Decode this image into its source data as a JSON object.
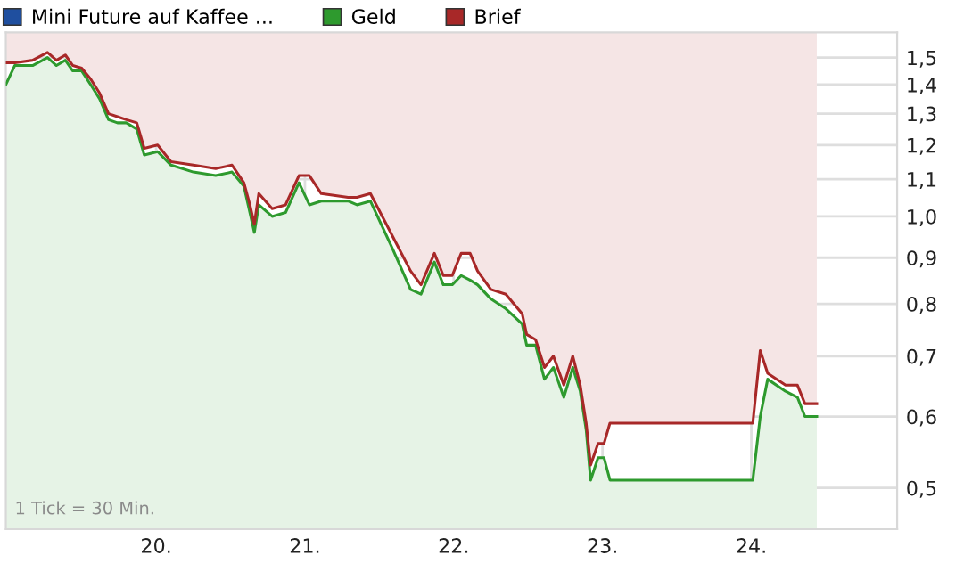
{
  "chart_data": {
    "type": "line",
    "x": [
      18.99,
      19.05,
      19.17,
      19.27,
      19.33,
      19.39,
      19.44,
      19.5,
      19.56,
      19.62,
      19.68,
      19.74,
      19.8,
      19.87,
      19.92,
      20.01,
      20.1,
      20.25,
      20.4,
      20.51,
      20.59,
      20.63,
      20.66,
      20.69,
      20.78,
      20.87,
      20.96,
      21.03,
      21.11,
      21.29,
      21.35,
      21.44,
      21.59,
      21.71,
      21.78,
      21.87,
      21.93,
      21.99,
      22.05,
      22.11,
      22.16,
      22.25,
      22.35,
      22.46,
      22.49,
      22.55,
      22.61,
      22.67,
      22.74,
      22.8,
      22.85,
      22.89,
      22.92,
      22.97,
      23.01,
      23.05,
      24.01,
      24.06,
      24.11,
      24.23,
      24.31,
      24.36,
      24.44
    ],
    "series": [
      {
        "name": "Mini Future auf Kaffee ...",
        "color": "#1f4f9f",
        "values": [
          null,
          null,
          null,
          null,
          null,
          null,
          null,
          null,
          null,
          null,
          null,
          null,
          null,
          null,
          null,
          null,
          null,
          null,
          null,
          null,
          null,
          null,
          null,
          null,
          null,
          null,
          null,
          null,
          null,
          null,
          null,
          null,
          null,
          null,
          null,
          null,
          null,
          null,
          null,
          null,
          null,
          null,
          null,
          null,
          null,
          null,
          null,
          null,
          null,
          null,
          null,
          null,
          null,
          null,
          null,
          null,
          null,
          null,
          null,
          null,
          null,
          null,
          null
        ]
      },
      {
        "name": "Geld",
        "color": "#2e9a2e",
        "type": "area",
        "values": [
          1.4,
          1.47,
          1.47,
          1.5,
          1.47,
          1.49,
          1.45,
          1.45,
          1.4,
          1.35,
          1.28,
          1.27,
          1.27,
          1.25,
          1.17,
          1.18,
          1.14,
          1.12,
          1.11,
          1.12,
          1.08,
          1.01,
          0.96,
          1.03,
          1.0,
          1.01,
          1.09,
          1.03,
          1.04,
          1.04,
          1.03,
          1.04,
          0.92,
          0.83,
          0.82,
          0.89,
          0.84,
          0.84,
          0.86,
          0.85,
          0.84,
          0.81,
          0.79,
          0.76,
          0.72,
          0.72,
          0.66,
          0.68,
          0.63,
          0.68,
          0.64,
          0.58,
          0.51,
          0.54,
          0.54,
          0.51,
          0.51,
          0.6,
          0.66,
          0.64,
          0.63,
          0.6,
          0.6
        ]
      },
      {
        "name": "Brief",
        "color": "#a82828",
        "type": "line",
        "values": [
          1.48,
          1.48,
          1.49,
          1.52,
          1.49,
          1.51,
          1.47,
          1.46,
          1.42,
          1.37,
          1.3,
          1.29,
          1.28,
          1.27,
          1.19,
          1.2,
          1.15,
          1.14,
          1.13,
          1.14,
          1.09,
          1.03,
          0.98,
          1.06,
          1.02,
          1.03,
          1.11,
          1.11,
          1.06,
          1.05,
          1.05,
          1.06,
          0.95,
          0.87,
          0.84,
          0.91,
          0.86,
          0.86,
          0.91,
          0.91,
          0.87,
          0.83,
          0.82,
          0.78,
          0.74,
          0.73,
          0.68,
          0.7,
          0.65,
          0.7,
          0.65,
          0.59,
          0.53,
          0.56,
          0.56,
          0.59,
          0.59,
          0.71,
          0.67,
          0.65,
          0.65,
          0.62,
          0.62
        ],
        "lower": [
          1.48,
          1.48,
          1.49,
          1.52,
          1.49,
          1.51,
          1.47,
          1.46,
          1.42,
          1.37,
          1.3,
          1.29,
          1.28,
          1.27,
          1.19,
          1.2,
          1.15,
          1.14,
          1.13,
          1.14,
          1.09,
          1.03,
          0.98,
          1.06,
          1.02,
          1.03,
          1.11,
          1.11,
          1.06,
          1.05,
          1.05,
          1.06,
          0.95,
          0.87,
          0.84,
          0.91,
          0.86,
          0.86,
          0.91,
          0.91,
          0.87,
          0.83,
          0.82,
          0.78,
          0.74,
          0.73,
          0.68,
          0.7,
          0.65,
          0.7,
          0.65,
          0.59,
          0.53,
          0.56,
          0.56,
          0.59,
          0.59,
          0.71,
          0.67,
          0.65,
          0.65,
          0.62,
          0.62
        ],
        "upper": [
          1.6,
          1.6,
          1.6,
          1.6,
          1.6,
          1.6,
          1.6,
          1.6,
          1.6,
          1.6,
          1.6,
          1.6,
          1.6,
          1.6,
          1.6,
          1.6,
          1.6,
          1.6,
          1.6,
          1.6,
          1.6,
          1.6,
          1.6,
          1.6,
          1.6,
          1.6,
          1.6,
          1.6,
          1.6,
          1.6,
          1.6,
          1.6,
          1.6,
          1.6,
          1.6,
          1.6,
          1.6,
          1.6,
          1.6,
          1.6,
          1.6,
          1.6,
          1.6,
          1.6,
          1.6,
          1.6,
          1.6,
          1.6,
          1.6,
          1.6,
          1.6,
          1.6,
          1.6,
          1.6,
          1.6,
          1.6,
          1.6,
          1.6,
          1.6,
          1.6,
          1.6,
          1.6,
          1.6
        ]
      }
    ],
    "log": "y",
    "xlim": [
      18.99,
      24.98
    ],
    "xticks": [
      {
        "value": 20,
        "label": "20."
      },
      {
        "value": 21,
        "label": "21."
      },
      {
        "value": 22,
        "label": "22."
      },
      {
        "value": 23,
        "label": "23."
      },
      {
        "value": 24,
        "label": "24."
      }
    ],
    "ylim": [
      0.45,
      1.6
    ],
    "yticks": [
      {
        "value": 0.5,
        "label": "0,5"
      },
      {
        "value": 0.6,
        "label": "0,6"
      },
      {
        "value": 0.7,
        "label": "0,7"
      },
      {
        "value": 0.8,
        "label": "0,8"
      },
      {
        "value": 0.9,
        "label": "0,9"
      },
      {
        "value": 1.0,
        "label": "1,0"
      },
      {
        "value": 1.1,
        "label": "1,1"
      },
      {
        "value": 1.2,
        "label": "1,2"
      },
      {
        "value": 1.3,
        "label": "1,3"
      },
      {
        "value": 1.4,
        "label": "1,4"
      },
      {
        "value": 1.5,
        "label": "1,5"
      }
    ],
    "grid": true,
    "legend": "top left",
    "annotations": [
      "1 Tick = 30 Min."
    ]
  }
}
